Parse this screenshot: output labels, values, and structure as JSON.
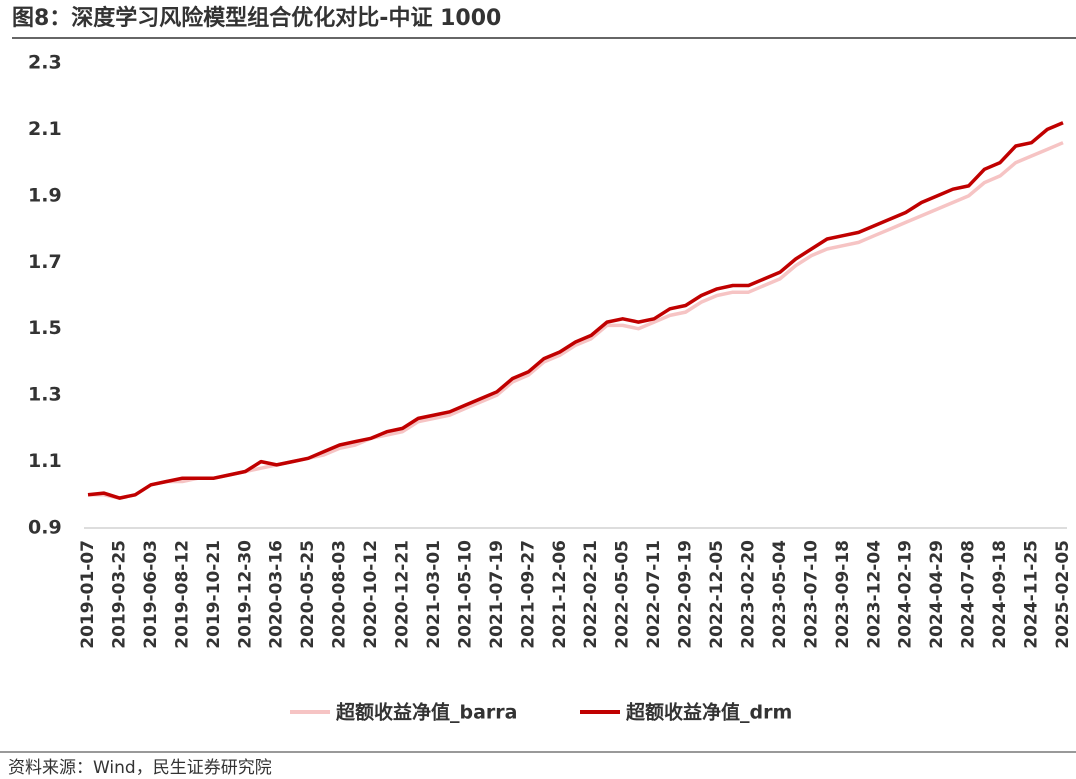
{
  "chart_data": {
    "type": "line",
    "title": "图8：深度学习风险模型组合优化对比-中证 1000",
    "source": "资料来源：Wind，民生证券研究院",
    "categories": [
      "2019-01-07",
      null,
      "2019-03-25",
      null,
      "2019-06-03",
      null,
      "2019-08-12",
      null,
      "2019-10-21",
      null,
      "2019-12-30",
      null,
      "2020-03-16",
      null,
      "2020-05-25",
      null,
      "2020-08-03",
      null,
      "2020-10-12",
      null,
      "2020-12-21",
      null,
      "2021-03-01",
      null,
      "2021-05-10",
      null,
      "2021-07-19",
      null,
      "2021-09-27",
      null,
      "2021-12-06",
      null,
      "2022-02-21",
      null,
      "2022-05-05",
      null,
      "2022-07-11",
      null,
      "2022-09-19",
      null,
      "2022-12-05",
      null,
      "2023-02-20",
      null,
      "2023-05-04",
      null,
      "2023-07-10",
      null,
      "2023-09-18",
      null,
      "2023-12-04",
      null,
      "2024-02-19",
      null,
      "2024-04-29",
      null,
      "2024-07-08",
      null,
      "2024-09-18",
      null,
      "2024-11-25",
      null,
      "2025-02-05"
    ],
    "series": [
      {
        "name": "超额收益净值_barra",
        "color": "#f6c4c4",
        "values": [
          1.0,
          1.0,
          0.99,
          1.0,
          1.03,
          1.04,
          1.04,
          1.05,
          1.05,
          1.06,
          1.07,
          1.08,
          1.09,
          1.1,
          1.11,
          1.12,
          1.14,
          1.15,
          1.17,
          1.18,
          1.19,
          1.22,
          1.23,
          1.24,
          1.26,
          1.28,
          1.3,
          1.34,
          1.36,
          1.4,
          1.42,
          1.45,
          1.47,
          1.51,
          1.51,
          1.5,
          1.52,
          1.54,
          1.55,
          1.58,
          1.6,
          1.61,
          1.61,
          1.63,
          1.65,
          1.69,
          1.72,
          1.74,
          1.75,
          1.76,
          1.78,
          1.8,
          1.82,
          1.84,
          1.86,
          1.88,
          1.9,
          1.94,
          1.96,
          2.0,
          2.02,
          2.04,
          2.06
        ]
      },
      {
        "name": "超额收益净值_drm",
        "color": "#c00000",
        "values": [
          1.0,
          1.005,
          0.99,
          1.0,
          1.03,
          1.04,
          1.05,
          1.05,
          1.05,
          1.06,
          1.07,
          1.1,
          1.09,
          1.1,
          1.11,
          1.13,
          1.15,
          1.16,
          1.17,
          1.19,
          1.2,
          1.23,
          1.24,
          1.25,
          1.27,
          1.29,
          1.31,
          1.35,
          1.37,
          1.41,
          1.43,
          1.46,
          1.48,
          1.52,
          1.53,
          1.52,
          1.53,
          1.56,
          1.57,
          1.6,
          1.62,
          1.63,
          1.63,
          1.65,
          1.67,
          1.71,
          1.74,
          1.77,
          1.78,
          1.79,
          1.81,
          1.83,
          1.85,
          1.88,
          1.9,
          1.92,
          1.93,
          1.98,
          2.0,
          2.05,
          2.06,
          2.1,
          2.12
        ]
      }
    ],
    "ylim": [
      0.9,
      2.3
    ],
    "yticks": [
      0.9,
      1.1,
      1.3,
      1.5,
      1.7,
      1.9,
      2.1,
      2.3
    ],
    "grid": false,
    "legend": "bottom"
  }
}
